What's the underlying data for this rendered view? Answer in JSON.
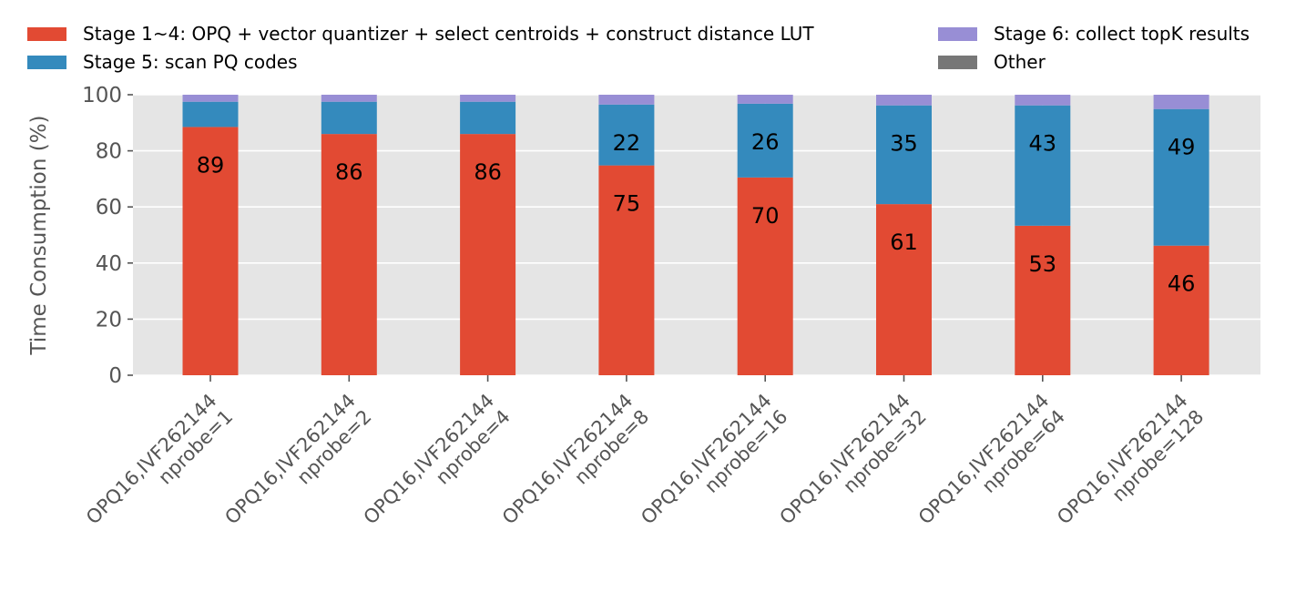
{
  "chart_data": {
    "type": "bar",
    "stacked": true,
    "title": "",
    "xlabel": "",
    "ylabel": "Time Consumption (%)",
    "ylim": [
      0,
      100
    ],
    "yticks": [
      0,
      20,
      40,
      60,
      80,
      100
    ],
    "grid": true,
    "legend_position": "top",
    "categories": [
      [
        "OPQ16,IVF262144",
        "nprobe=1"
      ],
      [
        "OPQ16,IVF262144",
        "nprobe=2"
      ],
      [
        "OPQ16,IVF262144",
        "nprobe=4"
      ],
      [
        "OPQ16,IVF262144",
        "nprobe=8"
      ],
      [
        "OPQ16,IVF262144",
        "nprobe=16"
      ],
      [
        "OPQ16,IVF262144",
        "nprobe=32"
      ],
      [
        "OPQ16,IVF262144",
        "nprobe=64"
      ],
      [
        "OPQ16,IVF262144",
        "nprobe=128"
      ]
    ],
    "series": [
      {
        "name": "Stage 1~4: OPQ + vector quantizer + select centroids + construct distance LUT",
        "color": "#E24A33",
        "values": [
          88.5,
          86,
          86,
          74.8,
          70.5,
          61,
          53.3,
          46.2
        ],
        "labels": [
          "89",
          "86",
          "86",
          "75",
          "70",
          "61",
          "53",
          "46"
        ]
      },
      {
        "name": "Stage 5: scan PQ codes",
        "color": "#348ABD",
        "values": [
          9,
          11.5,
          11.5,
          21.7,
          26.3,
          35.2,
          42.9,
          48.7
        ],
        "labels": [
          "",
          "",
          "",
          "22",
          "26",
          "35",
          "43",
          "49"
        ]
      },
      {
        "name": "Stage 6: collect topK results",
        "color": "#988ED5",
        "values": [
          2.5,
          2.5,
          2.5,
          3.5,
          3.2,
          3.8,
          3.8,
          5.1
        ],
        "labels": [
          "",
          "",
          "",
          "",
          "",
          "",
          "",
          ""
        ]
      },
      {
        "name": "Other",
        "color": "#777777",
        "values": [
          0,
          0,
          0,
          0,
          0,
          0,
          0,
          0
        ],
        "labels": [
          "",
          "",
          "",
          "",
          "",
          "",
          "",
          ""
        ]
      }
    ]
  }
}
